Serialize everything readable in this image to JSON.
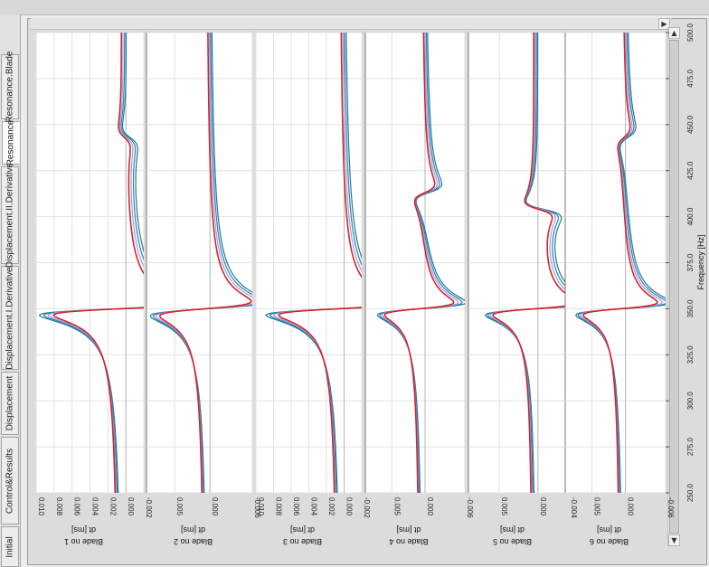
{
  "tabs": [
    {
      "label": "Initial",
      "active": false
    },
    {
      "label": "Control&Results",
      "active": false
    },
    {
      "label": "Displacement",
      "active": false
    },
    {
      "label": "Displacement.I.Derivative",
      "active": false
    },
    {
      "label": "Displacement.II.Derivative",
      "active": false
    },
    {
      "label": "Resonance",
      "active": true
    },
    {
      "label": "Resonance.Blade",
      "active": false
    }
  ],
  "scroll_arrows": {
    "up": "▲",
    "down": "▼",
    "right": "▶"
  },
  "icons": {
    "scroll_up": "arrow-up-icon",
    "scroll_down": "arrow-down-icon",
    "scroll_right": "arrow-right-icon"
  },
  "colors": {
    "plot_bg": "#ffffff",
    "grid": "#e2e2e2",
    "series": [
      "#1f7f80",
      "#3b78c2",
      "#8ea7e0",
      "#d8222a"
    ]
  },
  "chart_data": {
    "type": "line",
    "frequency_axis": {
      "label": "Frequency [Hz]",
      "range": [
        250,
        500
      ],
      "ticks": [
        "250.0",
        "275.0",
        "300.0",
        "325.0",
        "350.0",
        "375.0",
        "400.0",
        "425.0",
        "450.0",
        "475.0",
        "500.0"
      ]
    },
    "panels": [
      {
        "label": "Blade no 1",
        "unit": "dt [ms]",
        "range": [
          -0.002,
          0.01
        ],
        "ticks": [
          "-0.002",
          "0.000",
          "0.002",
          "0.004",
          "0.006",
          "0.008",
          "0.010"
        ],
        "baseline": [
          0.00024,
          0.0004,
          0.00056,
          0.00072
        ],
        "features": [
          {
            "f": 350,
            "amp": 0.0095,
            "w": 3.5
          },
          {
            "f": 443,
            "amp": -0.0008,
            "w": 6
          }
        ]
      },
      {
        "label": "Blade no 2",
        "unit": "dt [ms]",
        "range": [
          -0.006,
          0.009
        ],
        "ticks": [
          "-0.006",
          "0.000",
          "0.005"
        ],
        "baseline": [
          0.00016,
          0.00032,
          0.00048,
          0.00064
        ],
        "features": [
          {
            "f": 350,
            "amp": 0.0083,
            "w": 4
          }
        ]
      },
      {
        "label": "Blade no 3",
        "unit": "dt [ms]",
        "range": [
          -0.002,
          0.01
        ],
        "ticks": [
          "-0.002",
          "0.000",
          "0.002",
          "0.004",
          "0.006",
          "0.008",
          "0.010"
        ],
        "baseline": [
          0.00016,
          0.00032,
          0.00048,
          0.00064
        ],
        "features": [
          {
            "f": 350,
            "amp": 0.0087,
            "w": 3.5
          }
        ]
      },
      {
        "label": "Blade no 4",
        "unit": "dt [ms]",
        "range": [
          -0.006,
          0.009
        ],
        "ticks": [
          "-0.006",
          "0.000",
          "0.005"
        ],
        "baseline": [
          0.00016,
          0.00032,
          0.00048,
          0.00064
        ],
        "features": [
          {
            "f": 350,
            "amp": 0.0067,
            "w": 3.5
          },
          {
            "f": 413,
            "amp": 0.002,
            "w": 5
          }
        ]
      },
      {
        "label": "Blade no 5",
        "unit": "dt [ms]",
        "range": [
          -0.004,
          0.009
        ],
        "ticks": [
          "-0.004",
          "0.000",
          "0.005"
        ],
        "baseline": [
          0.00016,
          0.00032,
          0.00048,
          0.00064
        ],
        "features": [
          {
            "f": 350,
            "amp": 0.007,
            "w": 3.5
          },
          {
            "f": 404,
            "amp": -0.0022,
            "w": 4.5
          }
        ]
      },
      {
        "label": "Blade no 6",
        "unit": "dt [ms]",
        "range": [
          -0.006,
          0.009
        ],
        "ticks": [
          "-0.006",
          "0.000",
          "0.005"
        ],
        "baseline": [
          0.00016,
          0.00032,
          0.00048,
          0.00064
        ],
        "features": [
          {
            "f": 350,
            "amp": 0.0071,
            "w": 3.5
          },
          {
            "f": 443,
            "amp": 0.0012,
            "w": 6
          }
        ]
      }
    ]
  }
}
